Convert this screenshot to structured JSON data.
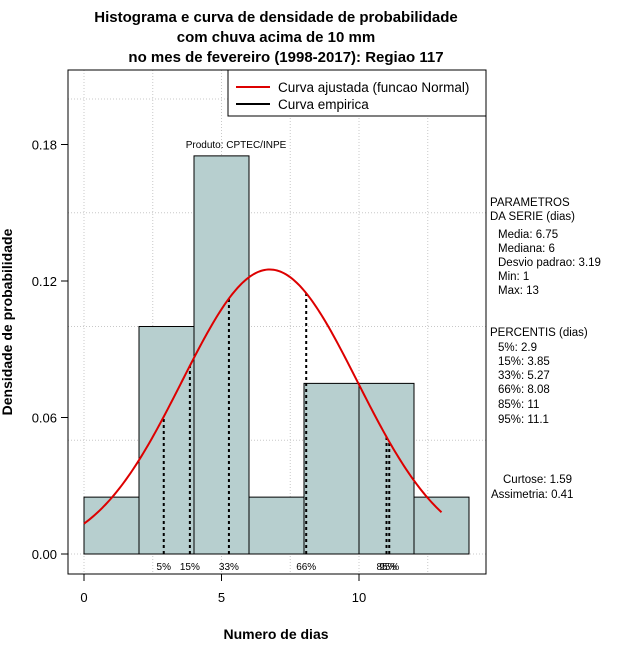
{
  "chart_data": {
    "type": "bar",
    "title_lines": [
      "Histograma e curva de densidade de probabilidade",
      "com chuva acima de 10 mm",
      "no mes de fevereiro (1998-2017): Regiao 117"
    ],
    "xlabel": "Numero de dias",
    "ylabel": "Densidade de probabilidade",
    "xlim": [
      -0.5,
      14.5
    ],
    "ylim": [
      0,
      0.21
    ],
    "x_ticks": [
      0,
      5,
      10
    ],
    "y_ticks": [
      0.0,
      0.06,
      0.12,
      0.18
    ],
    "y_tick_labels": [
      "0.00",
      "0.06",
      "0.12",
      "0.18"
    ],
    "histogram": {
      "bin_edges": [
        0,
        2,
        4,
        6,
        8,
        10,
        12,
        14
      ],
      "densities": [
        0.025,
        0.1,
        0.175,
        0.025,
        0.075,
        0.075,
        0.025
      ],
      "fill_color": "#b7cfcf"
    },
    "normal_curve": {
      "mean": 6.75,
      "sd": 3.19,
      "x_from": 0,
      "x_to": 13,
      "color": "#dd0000"
    },
    "percentile_lines": [
      {
        "label": "5%",
        "x": 2.9
      },
      {
        "label": "15%",
        "x": 3.85
      },
      {
        "label": "33%",
        "x": 5.27
      },
      {
        "label": "66%",
        "x": 8.08
      },
      {
        "label": "85%",
        "x": 11
      },
      {
        "label": "95%",
        "x": 11.1
      }
    ],
    "percentile_axis_labels": [
      {
        "text": "5%",
        "x": 2.9
      },
      {
        "text": "15%",
        "x": 3.85
      },
      {
        "text": "33%",
        "x": 5.27
      },
      {
        "text": "66%",
        "x": 8.08
      },
      {
        "text": "85%",
        "x": 11.0
      },
      {
        "text": "95%",
        "x": 11.1
      }
    ],
    "legend": [
      {
        "label": "Curva ajustada (funcao Normal)",
        "color": "#dd0000"
      },
      {
        "label": "Curva empirica",
        "color": "#000000"
      }
    ],
    "annotation": "Produto: CPTEC/INPE",
    "grid": true
  },
  "side_panel": {
    "parametros": [
      "PARAMETROS",
      "DA SERIE (dias)",
      "Media: 6.75",
      "Mediana: 6",
      "Desvio padrao: 3.19",
      "Min: 1",
      "Max: 13"
    ],
    "percentis": [
      "PERCENTIS (dias)",
      "5%: 2.9",
      "15%: 3.85",
      "33%: 5.27",
      "66%: 8.08",
      "85%: 11",
      "95%: 11.1"
    ],
    "curtose": "Curtose: 1.59",
    "assimetria": "Assimetria: 0.41"
  }
}
